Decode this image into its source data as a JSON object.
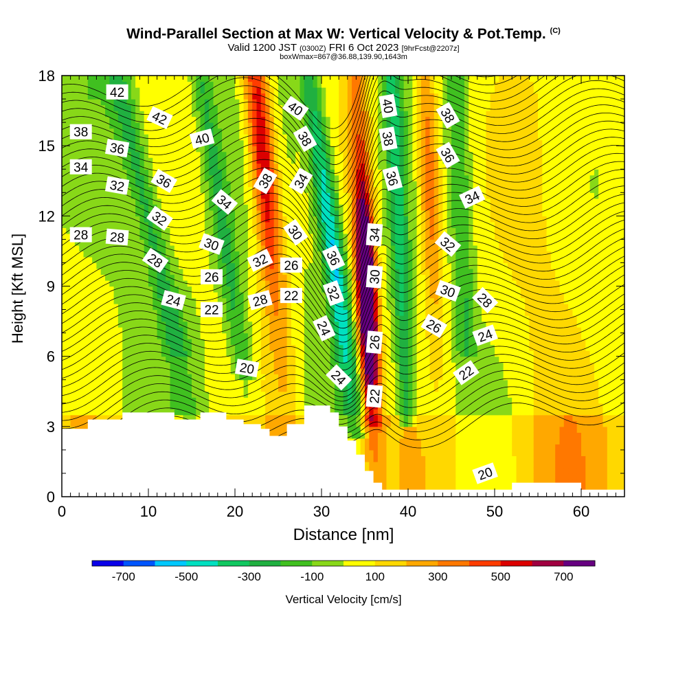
{
  "header": {
    "title": "Wind-Parallel Section at Max W: Vertical Velocity & Pot.Temp.",
    "title_tag": "(C)",
    "subtitle_a": "Valid 1200 JST",
    "subtitle_b": "(0300Z)",
    "subtitle_c": "FRI 6 Oct 2023",
    "subtitle_d": "[9hrFcst@2207z]",
    "box_info": "boxWmax=867@36.88,139.90,1643m"
  },
  "chart_data": {
    "type": "heatmap",
    "title": "Wind-Parallel Section at Max W: Vertical Velocity & Pot.Temp. (C)",
    "xlabel": "Distance [nm]",
    "ylabel": "Height [Kft MSL]",
    "xlim": [
      0,
      65
    ],
    "ylim": [
      0,
      18
    ],
    "x_ticks": [
      0,
      10,
      20,
      30,
      40,
      50,
      60
    ],
    "y_ticks": [
      0,
      3,
      6,
      9,
      12,
      15,
      18
    ],
    "grid": false,
    "colorbar": {
      "label": "Vertical Velocity [cm/s]",
      "tick_values": [
        -700,
        -500,
        -300,
        -100,
        100,
        300,
        500,
        700
      ],
      "bin_edges": [
        -800,
        -700,
        -600,
        -500,
        -400,
        -300,
        -200,
        -100,
        0,
        100,
        200,
        300,
        400,
        500,
        600,
        700,
        800
      ],
      "colors": [
        "#0a00e8",
        "#0055ff",
        "#00c8ff",
        "#00e0c0",
        "#10c860",
        "#20b040",
        "#40c020",
        "#88d818",
        "#ffff00",
        "#ffd800",
        "#ffa800",
        "#ff7800",
        "#ff3c00",
        "#dc0000",
        "#a00040",
        "#660080"
      ]
    },
    "velocity_features": [
      {
        "kind": "updraft",
        "x_center": 24.5,
        "y_range": [
          3.6,
          18
        ],
        "max_cms": 550
      },
      {
        "kind": "downdraft",
        "x_center": 31.5,
        "y_range": [
          2.5,
          18
        ],
        "min_cms": -500
      },
      {
        "kind": "updraft",
        "x_center": 35.9,
        "y_range": [
          2.5,
          18
        ],
        "max_cms": 867
      },
      {
        "kind": "updraft",
        "x_center": 42.0,
        "y_range": [
          3,
          18
        ],
        "max_cms": 400
      }
    ],
    "terrain": {
      "x": [
        0,
        3,
        3,
        7,
        7,
        13,
        13,
        16,
        16,
        19,
        19,
        21,
        21,
        23,
        23,
        24,
        24,
        26,
        26,
        28,
        28,
        31,
        31,
        32,
        32,
        33,
        33,
        34,
        34,
        35,
        35,
        36,
        36,
        37,
        37,
        40,
        40,
        52,
        52,
        60,
        60,
        65
      ],
      "height_kft": [
        2.9,
        2.9,
        3.3,
        3.3,
        3.6,
        3.6,
        3.3,
        3.3,
        3.6,
        3.6,
        3.3,
        3.3,
        3.1,
        3.1,
        2.9,
        2.9,
        2.6,
        2.6,
        3.1,
        3.1,
        3.9,
        3.9,
        3.6,
        3.6,
        3.0,
        3.0,
        2.4,
        2.4,
        1.8,
        1.8,
        1.1,
        1.1,
        0.6,
        0.6,
        0.3,
        0.3,
        0.3,
        0.3,
        0.6,
        0.6,
        0.3,
        0.3
      ]
    },
    "pot_temp_labels": [
      {
        "text": "42",
        "x": 6.4,
        "y": 17.3,
        "angle": 0
      },
      {
        "text": "38",
        "x": 2.2,
        "y": 15.6,
        "angle": 0
      },
      {
        "text": "36",
        "x": 6.4,
        "y": 14.9,
        "angle": 10
      },
      {
        "text": "34",
        "x": 2.2,
        "y": 14.1,
        "angle": 0
      },
      {
        "text": "32",
        "x": 6.4,
        "y": 13.3,
        "angle": 10
      },
      {
        "text": "28",
        "x": 2.2,
        "y": 11.2,
        "angle": 0
      },
      {
        "text": "28",
        "x": 6.4,
        "y": 11.1,
        "angle": 5
      },
      {
        "text": "42",
        "x": 11.3,
        "y": 16.2,
        "angle": 25
      },
      {
        "text": "36",
        "x": 11.8,
        "y": 13.5,
        "angle": 30
      },
      {
        "text": "32",
        "x": 11.3,
        "y": 11.9,
        "angle": 35
      },
      {
        "text": "28",
        "x": 10.8,
        "y": 10.1,
        "angle": 35
      },
      {
        "text": "24",
        "x": 12.9,
        "y": 8.4,
        "angle": 15
      },
      {
        "text": "40",
        "x": 16.2,
        "y": 15.3,
        "angle": -15
      },
      {
        "text": "34",
        "x": 18.8,
        "y": 12.6,
        "angle": 40
      },
      {
        "text": "30",
        "x": 17.3,
        "y": 10.8,
        "angle": 20
      },
      {
        "text": "26",
        "x": 17.3,
        "y": 9.4,
        "angle": 0
      },
      {
        "text": "22",
        "x": 17.3,
        "y": 8.0,
        "angle": 0
      },
      {
        "text": "20",
        "x": 21.4,
        "y": 5.5,
        "angle": 10
      },
      {
        "text": "38",
        "x": 23.5,
        "y": 13.5,
        "angle": -60
      },
      {
        "text": "32",
        "x": 22.9,
        "y": 10.1,
        "angle": -25
      },
      {
        "text": "28",
        "x": 22.9,
        "y": 8.4,
        "angle": -15
      },
      {
        "text": "40",
        "x": 27.0,
        "y": 16.6,
        "angle": 35
      },
      {
        "text": "38",
        "x": 28.1,
        "y": 15.3,
        "angle": 60
      },
      {
        "text": "34",
        "x": 27.6,
        "y": 13.5,
        "angle": -60
      },
      {
        "text": "30",
        "x": 27.0,
        "y": 11.3,
        "angle": 55
      },
      {
        "text": "26",
        "x": 26.5,
        "y": 9.9,
        "angle": 0
      },
      {
        "text": "22",
        "x": 26.5,
        "y": 8.6,
        "angle": 0
      },
      {
        "text": "36",
        "x": 31.4,
        "y": 10.2,
        "angle": 65
      },
      {
        "text": "32",
        "x": 31.4,
        "y": 8.7,
        "angle": 70
      },
      {
        "text": "24",
        "x": 30.3,
        "y": 7.2,
        "angle": 65
      },
      {
        "text": "24",
        "x": 32.0,
        "y": 5.1,
        "angle": 45
      },
      {
        "text": "34",
        "x": 36.1,
        "y": 11.2,
        "angle": -85
      },
      {
        "text": "30",
        "x": 36.1,
        "y": 9.4,
        "angle": -85
      },
      {
        "text": "26",
        "x": 36.1,
        "y": 6.6,
        "angle": -85
      },
      {
        "text": "22",
        "x": 36.1,
        "y": 4.3,
        "angle": -85
      },
      {
        "text": "40",
        "x": 37.7,
        "y": 16.7,
        "angle": 80
      },
      {
        "text": "38",
        "x": 37.7,
        "y": 15.3,
        "angle": 80
      },
      {
        "text": "36",
        "x": 38.2,
        "y": 13.6,
        "angle": 75
      },
      {
        "text": "38",
        "x": 44.6,
        "y": 16.3,
        "angle": 60
      },
      {
        "text": "36",
        "x": 44.6,
        "y": 14.6,
        "angle": 60
      },
      {
        "text": "34",
        "x": 47.4,
        "y": 12.8,
        "angle": -25
      },
      {
        "text": "32",
        "x": 44.6,
        "y": 10.8,
        "angle": 40
      },
      {
        "text": "30",
        "x": 44.6,
        "y": 8.8,
        "angle": 20
      },
      {
        "text": "28",
        "x": 48.9,
        "y": 8.4,
        "angle": 45
      },
      {
        "text": "26",
        "x": 43.0,
        "y": 7.3,
        "angle": 30
      },
      {
        "text": "24",
        "x": 48.9,
        "y": 6.9,
        "angle": -20
      },
      {
        "text": "22",
        "x": 46.7,
        "y": 5.3,
        "angle": -35
      },
      {
        "text": "20",
        "x": 48.9,
        "y": 1.0,
        "angle": -20
      }
    ]
  }
}
